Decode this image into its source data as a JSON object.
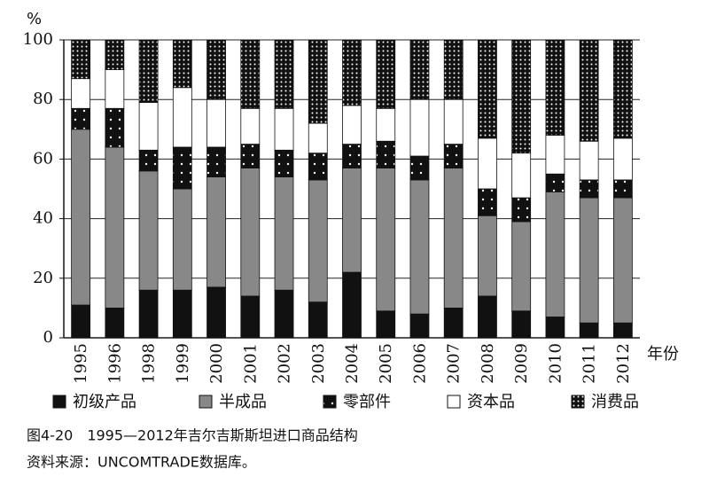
{
  "chart_data": {
    "type": "stacked_bar",
    "title": "图4-20　1995—2012年吉尔吉斯斯坦进口商品结构",
    "note": "资料来源：UNCOMTRADE数据库。",
    "y_unit": "%",
    "x_label": "年份",
    "categories": [
      "1995",
      "1996",
      "1998",
      "1999",
      "2000",
      "2001",
      "2002",
      "2003",
      "2004",
      "2005",
      "2006",
      "2007",
      "2008",
      "2009",
      "2010",
      "2011",
      "2012"
    ],
    "series": [
      {
        "name": "初级产品",
        "color": "#111111",
        "pattern": "solid",
        "values": [
          11,
          10,
          16,
          16,
          17,
          14,
          16,
          12,
          22,
          9,
          8,
          10,
          14,
          9,
          7,
          5,
          5
        ]
      },
      {
        "name": "半成品",
        "color": "#888888",
        "pattern": "solid",
        "values": [
          59,
          54,
          40,
          34,
          37,
          43,
          38,
          41,
          35,
          48,
          45,
          47,
          27,
          30,
          42,
          42,
          42
        ]
      },
      {
        "name": "零部件",
        "color": "#111111",
        "pattern": "sparse-dots",
        "values": [
          7,
          13,
          7,
          14,
          10,
          8,
          9,
          9,
          8,
          9,
          8,
          8,
          9,
          8,
          6,
          6,
          6
        ]
      },
      {
        "name": "资本品",
        "color": "#ffffff",
        "pattern": "solid",
        "values": [
          10,
          13,
          16,
          20,
          16,
          12,
          14,
          10,
          13,
          11,
          19,
          15,
          17,
          15,
          13,
          13,
          14
        ]
      },
      {
        "name": "消费品",
        "color": "#111111",
        "pattern": "dense-dots",
        "values": [
          13,
          10,
          21,
          16,
          20,
          23,
          23,
          28,
          22,
          23,
          20,
          20,
          33,
          38,
          32,
          34,
          33
        ]
      }
    ],
    "ylim": [
      0,
      100
    ],
    "yticks": [
      0,
      20,
      40,
      60,
      80,
      100
    ],
    "grid": true
  }
}
